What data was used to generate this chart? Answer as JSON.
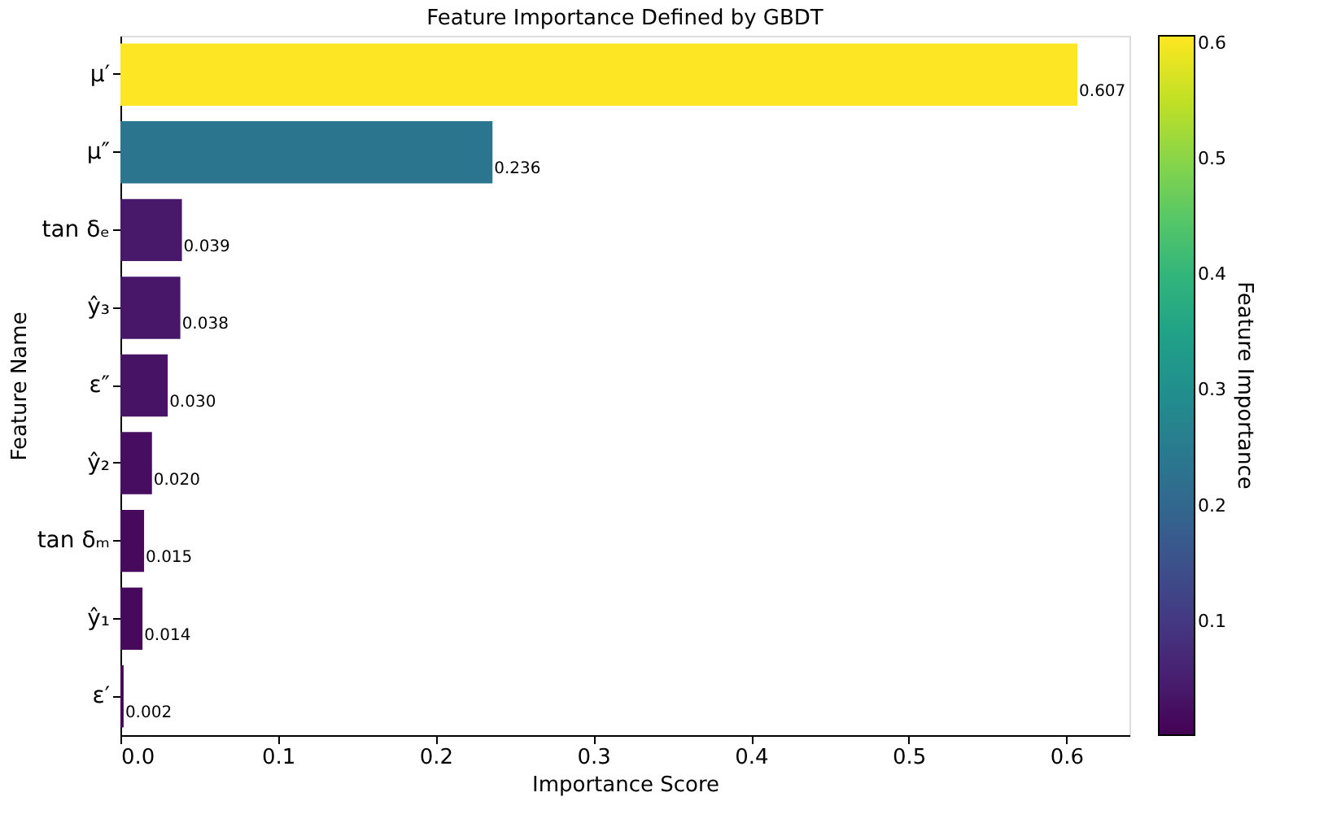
{
  "chart_data": {
    "type": "bar",
    "orientation": "horizontal",
    "title": "Feature Importance Defined by GBDT",
    "xlabel": "Importance Score",
    "ylabel": "Feature Name",
    "clabel": "Feature Importance",
    "categories": [
      "μ′",
      "μ″",
      "tan δₑ",
      "ŷ₃",
      "ε″",
      "ŷ₂",
      "tan δₘ",
      "ŷ₁",
      "ε′"
    ],
    "values": [
      0.607,
      0.236,
      0.039,
      0.038,
      0.03,
      0.02,
      0.015,
      0.014,
      0.002
    ],
    "value_labels": [
      "0.607",
      "0.236",
      "0.039",
      "0.038",
      "0.030",
      "0.020",
      "0.015",
      "0.014",
      "0.002"
    ],
    "xlim": [
      0,
      0.64
    ],
    "xticks": [
      {
        "value": 0,
        "label": "0.0"
      },
      0.1,
      0.2,
      0.3,
      0.4,
      0.5,
      0.6
    ],
    "clim": [
      0.002,
      0.607
    ],
    "cticks": [
      0.1,
      0.2,
      0.3,
      0.4,
      0.5,
      0.6
    ],
    "grid": false
  }
}
